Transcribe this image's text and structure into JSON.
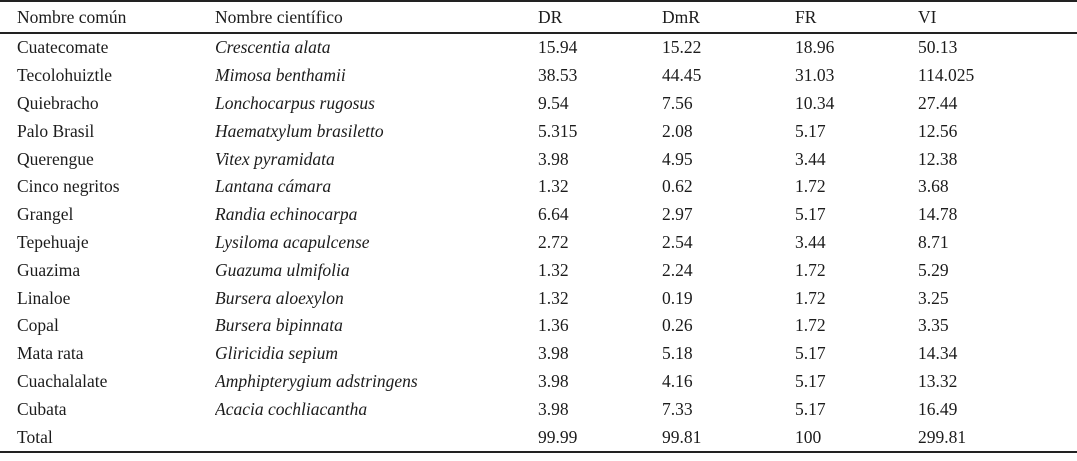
{
  "table": {
    "columns": [
      "Nombre común",
      "Nombre científico",
      "DR",
      "DmR",
      "FR",
      "VI"
    ],
    "rows": [
      [
        "Cuatecomate",
        "Crescentia alata",
        "15.94",
        "15.22",
        "18.96",
        "50.13"
      ],
      [
        "Tecolohuiztle",
        "Mimosa benthamii",
        "38.53",
        "44.45",
        "31.03",
        "114.025"
      ],
      [
        "Quiebracho",
        "Lonchocarpus rugosus",
        "9.54",
        "7.56",
        "10.34",
        "27.44"
      ],
      [
        "Palo Brasil",
        "Haematxylum brasiletto",
        "5.315",
        "2.08",
        "5.17",
        "12.56"
      ],
      [
        "Querengue",
        "Vitex pyramidata",
        "3.98",
        "4.95",
        "3.44",
        "12.38"
      ],
      [
        "Cinco negritos",
        "Lantana cámara",
        "1.32",
        "0.62",
        "1.72",
        "3.68"
      ],
      [
        "Grangel",
        "Randia echinocarpa",
        "6.64",
        "2.97",
        "5.17",
        "14.78"
      ],
      [
        "Tepehuaje",
        "Lysiloma acapulcense",
        "2.72",
        "2.54",
        "3.44",
        "8.71"
      ],
      [
        "Guazima",
        "Guazuma ulmifolia",
        "1.32",
        "2.24",
        "1.72",
        "5.29"
      ],
      [
        "Linaloe",
        "Bursera aloexylon",
        "1.32",
        "0.19",
        "1.72",
        "3.25"
      ],
      [
        "Copal",
        "Bursera bipinnata",
        "1.36",
        "0.26",
        "1.72",
        "3.35"
      ],
      [
        "Mata rata",
        "Gliricidia sepium",
        "3.98",
        "5.18",
        "5.17",
        "14.34"
      ],
      [
        "Cuachalalate",
        "Amphipterygium adstringens",
        "3.98",
        "4.16",
        "5.17",
        "13.32"
      ],
      [
        "Cubata",
        "Acacia cochliacantha",
        "3.98",
        "7.33",
        "5.17",
        "16.49"
      ]
    ],
    "total_row": [
      "Total",
      "",
      "99.99",
      "99.81",
      "100",
      "299.81"
    ]
  },
  "colors": {
    "text": "#1c1c1c",
    "rule": "#222222",
    "background": "#ffffff"
  }
}
